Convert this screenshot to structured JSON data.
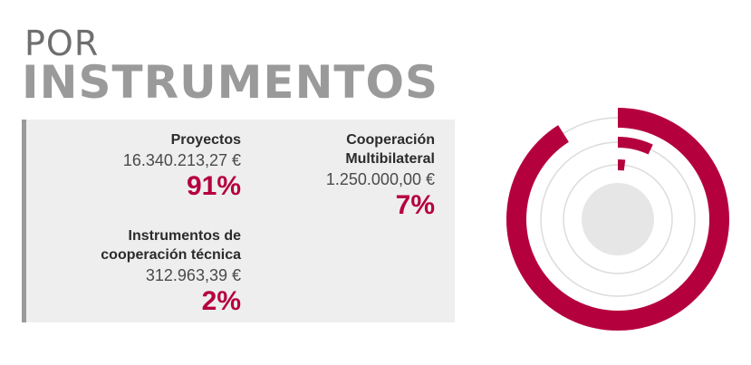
{
  "header": {
    "title_light": "POR",
    "title_bold": "INSTRUMENTOS"
  },
  "colors": {
    "accent": "#b5003e",
    "ring_guide": "#dcdcdc",
    "center": "#e6e6e6",
    "panel_bg": "#eeeeef",
    "panel_border": "#9a9a9a"
  },
  "chart_data": {
    "type": "pie",
    "variant": "radial-rings",
    "categories": [
      "Proyectos",
      "Cooperación Multibilateral",
      "Instrumentos de cooperación técnica"
    ],
    "values": [
      16340213.27,
      1250000.0,
      312963.39
    ],
    "percentages": [
      91,
      7,
      2
    ],
    "series": [
      {
        "name": "Proyectos",
        "label_line1": "Proyectos",
        "label_line2": "",
        "amount": "16.340.213,27 €",
        "percent": "91%",
        "value": 91
      },
      {
        "name": "Cooperación Multibilateral",
        "label_line1": "Cooperación",
        "label_line2": "Multibilateral",
        "amount": "1.250.000,00 €",
        "percent": "7%",
        "value": 7
      },
      {
        "name": "Instrumentos de cooperación técnica",
        "label_line1": "Instrumentos de",
        "label_line2": "cooperación técnica",
        "amount": "312.963,39 €",
        "percent": "2%",
        "value": 2
      }
    ],
    "title": "",
    "legend": "left"
  }
}
